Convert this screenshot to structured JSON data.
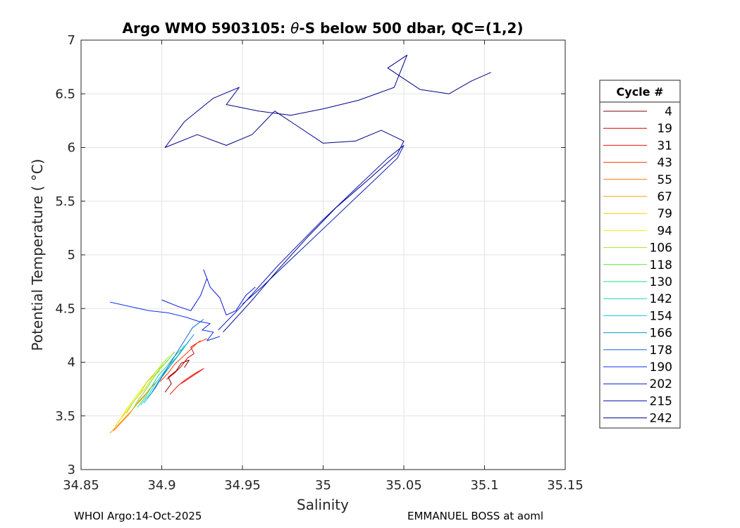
{
  "chart_data": {
    "type": "line",
    "title_prefix": "Argo WMO 5903105: ",
    "title_theta": "θ",
    "title_suffix": "-S below 500 dbar,  QC=(1,2)",
    "xlabel": "Salinity",
    "ylabel": "Potential Temperature ( °C)",
    "xlim": [
      34.85,
      35.15
    ],
    "ylim": [
      3,
      7
    ],
    "xticks": [
      34.85,
      34.9,
      34.95,
      35,
      35.05,
      35.1,
      35.15
    ],
    "xtick_labels": [
      "34.85",
      "34.9",
      "34.95",
      "35",
      "35.05",
      "35.1",
      "35.15"
    ],
    "yticks": [
      3,
      3.5,
      4,
      4.5,
      5,
      5.5,
      6,
      6.5,
      7
    ],
    "ytick_labels": [
      "3",
      "3.5",
      "4",
      "4.5",
      "5",
      "5.5",
      "6",
      "6.5",
      "7"
    ],
    "grid": true,
    "legend_position": "right-outside",
    "legend_title": "Cycle #",
    "series": [
      {
        "name": "4",
        "color": "#800000",
        "points": [
          [
            34.902,
            3.72
          ],
          [
            34.906,
            3.8
          ],
          [
            34.904,
            3.86
          ],
          [
            34.909,
            3.92
          ],
          [
            34.912,
            3.99
          ],
          [
            34.917,
            4.02
          ],
          [
            34.914,
            3.95
          ]
        ]
      },
      {
        "name": "19",
        "color": "#d40000",
        "points": [
          [
            34.903,
            3.84
          ],
          [
            34.908,
            3.9
          ],
          [
            34.912,
            3.96
          ],
          [
            34.916,
            4.04
          ],
          [
            34.92,
            4.08
          ],
          [
            34.918,
            4.14
          ],
          [
            34.924,
            4.2
          ]
        ]
      },
      {
        "name": "31",
        "color": "#f01010",
        "points": [
          [
            34.905,
            3.7
          ],
          [
            34.91,
            3.78
          ],
          [
            34.915,
            3.84
          ],
          [
            34.921,
            3.9
          ],
          [
            34.926,
            3.94
          ],
          [
            34.92,
            3.88
          ],
          [
            34.912,
            3.8
          ]
        ]
      },
      {
        "name": "43",
        "color": "#ff3800",
        "points": [
          [
            34.899,
            3.82
          ],
          [
            34.904,
            3.9
          ],
          [
            34.908,
            3.98
          ],
          [
            34.913,
            4.05
          ],
          [
            34.918,
            4.12
          ],
          [
            34.922,
            4.18
          ],
          [
            34.928,
            4.22
          ]
        ]
      },
      {
        "name": "55",
        "color": "#ff7400",
        "points": [
          [
            34.87,
            3.36
          ],
          [
            34.875,
            3.44
          ],
          [
            34.88,
            3.52
          ],
          [
            34.884,
            3.6
          ],
          [
            34.889,
            3.68
          ],
          [
            34.893,
            3.76
          ],
          [
            34.897,
            3.82
          ]
        ]
      },
      {
        "name": "67",
        "color": "#ff9e00",
        "points": [
          [
            34.868,
            3.34
          ],
          [
            34.872,
            3.4
          ],
          [
            34.877,
            3.48
          ],
          [
            34.882,
            3.56
          ],
          [
            34.886,
            3.64
          ],
          [
            34.891,
            3.72
          ],
          [
            34.895,
            3.8
          ]
        ]
      },
      {
        "name": "79",
        "color": "#ffc800",
        "points": [
          [
            34.871,
            3.4
          ],
          [
            34.876,
            3.5
          ],
          [
            34.88,
            3.58
          ],
          [
            34.885,
            3.68
          ],
          [
            34.89,
            3.76
          ],
          [
            34.894,
            3.86
          ],
          [
            34.899,
            3.92
          ]
        ]
      },
      {
        "name": "94",
        "color": "#f0f000",
        "points": [
          [
            34.874,
            3.46
          ],
          [
            34.878,
            3.56
          ],
          [
            34.883,
            3.66
          ],
          [
            34.887,
            3.74
          ],
          [
            34.892,
            3.84
          ],
          [
            34.897,
            3.92
          ],
          [
            34.901,
            3.98
          ]
        ]
      },
      {
        "name": "106",
        "color": "#a8e820",
        "points": [
          [
            34.878,
            3.52
          ],
          [
            34.882,
            3.62
          ],
          [
            34.887,
            3.72
          ],
          [
            34.891,
            3.82
          ],
          [
            34.896,
            3.9
          ],
          [
            34.9,
            3.98
          ],
          [
            34.905,
            4.06
          ]
        ]
      },
      {
        "name": "118",
        "color": "#5ee43c",
        "points": [
          [
            34.882,
            3.56
          ],
          [
            34.886,
            3.66
          ],
          [
            34.891,
            3.76
          ],
          [
            34.895,
            3.86
          ],
          [
            34.899,
            3.94
          ],
          [
            34.904,
            4.02
          ],
          [
            34.908,
            4.1
          ]
        ]
      },
      {
        "name": "130",
        "color": "#20dc7c",
        "points": [
          [
            34.885,
            3.58
          ],
          [
            34.89,
            3.68
          ],
          [
            34.894,
            3.78
          ],
          [
            34.898,
            3.88
          ],
          [
            34.903,
            3.96
          ],
          [
            34.907,
            4.04
          ],
          [
            34.912,
            4.12
          ]
        ]
      },
      {
        "name": "142",
        "color": "#10d8c0",
        "points": [
          [
            34.887,
            3.6
          ],
          [
            34.892,
            3.7
          ],
          [
            34.896,
            3.8
          ],
          [
            34.901,
            3.9
          ],
          [
            34.905,
            3.98
          ],
          [
            34.91,
            4.06
          ],
          [
            34.914,
            4.16
          ]
        ]
      },
      {
        "name": "154",
        "color": "#10c4e8",
        "points": [
          [
            34.889,
            3.62
          ],
          [
            34.894,
            3.72
          ],
          [
            34.898,
            3.82
          ],
          [
            34.903,
            3.92
          ],
          [
            34.907,
            4.0
          ],
          [
            34.912,
            4.1
          ],
          [
            34.917,
            4.2
          ]
        ]
      },
      {
        "name": "166",
        "color": "#0898c8",
        "points": [
          [
            34.891,
            3.66
          ],
          [
            34.896,
            3.76
          ],
          [
            34.9,
            3.86
          ],
          [
            34.905,
            3.96
          ],
          [
            34.91,
            4.06
          ],
          [
            34.915,
            4.16
          ],
          [
            34.92,
            4.26
          ]
        ]
      },
      {
        "name": "178",
        "color": "#1068d8",
        "points": [
          [
            34.894,
            3.72
          ],
          [
            34.899,
            3.84
          ],
          [
            34.904,
            3.96
          ],
          [
            34.909,
            4.08
          ],
          [
            34.914,
            4.2
          ],
          [
            34.919,
            4.32
          ],
          [
            34.926,
            4.4
          ]
        ]
      },
      {
        "name": "190",
        "color": "#1030f0",
        "points": [
          [
            34.868,
            4.56
          ],
          [
            34.88,
            4.52
          ],
          [
            34.892,
            4.48
          ],
          [
            34.904,
            4.46
          ],
          [
            34.915,
            4.42
          ],
          [
            34.923,
            4.38
          ],
          [
            34.93,
            4.36
          ],
          [
            34.925,
            4.3
          ],
          [
            34.932,
            4.28
          ],
          [
            34.928,
            4.2
          ],
          [
            34.936,
            4.24
          ]
        ]
      },
      {
        "name": "202",
        "color": "#0a16d8",
        "points": [
          [
            34.9,
            4.58
          ],
          [
            34.91,
            4.52
          ],
          [
            34.918,
            4.48
          ],
          [
            34.924,
            4.62
          ],
          [
            34.928,
            4.78
          ],
          [
            34.926,
            4.86
          ],
          [
            34.93,
            4.7
          ],
          [
            34.936,
            4.6
          ],
          [
            34.94,
            4.44
          ],
          [
            34.946,
            4.48
          ],
          [
            34.952,
            4.62
          ],
          [
            34.958,
            4.7
          ]
        ]
      },
      {
        "name": "215",
        "color": "#0010b0",
        "points": [
          [
            34.935,
            4.3
          ],
          [
            34.948,
            4.5
          ],
          [
            34.96,
            4.7
          ],
          [
            34.972,
            4.9
          ],
          [
            34.985,
            5.1
          ],
          [
            34.998,
            5.3
          ],
          [
            35.012,
            5.5
          ],
          [
            35.026,
            5.7
          ],
          [
            35.04,
            5.9
          ],
          [
            35.05,
            6.02
          ],
          [
            35.046,
            5.9
          ],
          [
            35.032,
            5.7
          ],
          [
            35.018,
            5.5
          ],
          [
            35.004,
            5.3
          ],
          [
            34.99,
            5.1
          ],
          [
            34.976,
            4.9
          ],
          [
            34.962,
            4.7
          ],
          [
            34.95,
            4.54
          ]
        ]
      },
      {
        "name": "242",
        "color": "#00008b",
        "points": [
          [
            34.938,
            4.28
          ],
          [
            34.955,
            4.56
          ],
          [
            34.972,
            4.86
          ],
          [
            34.99,
            5.16
          ],
          [
            35.008,
            5.44
          ],
          [
            35.028,
            5.7
          ],
          [
            35.046,
            5.94
          ],
          [
            35.05,
            6.06
          ],
          [
            35.036,
            6.16
          ],
          [
            35.02,
            6.06
          ],
          [
            35.0,
            6.04
          ],
          [
            34.984,
            6.2
          ],
          [
            34.97,
            6.34
          ],
          [
            34.956,
            6.12
          ],
          [
            34.94,
            6.02
          ],
          [
            34.922,
            6.12
          ],
          [
            34.902,
            6.0
          ],
          [
            34.914,
            6.24
          ],
          [
            34.932,
            6.46
          ],
          [
            34.948,
            6.56
          ],
          [
            34.94,
            6.4
          ],
          [
            34.96,
            6.34
          ],
          [
            34.98,
            6.3
          ],
          [
            35.0,
            6.36
          ],
          [
            35.022,
            6.44
          ],
          [
            35.044,
            6.56
          ],
          [
            35.052,
            6.86
          ],
          [
            35.04,
            6.74
          ],
          [
            35.06,
            6.54
          ],
          [
            35.078,
            6.5
          ],
          [
            35.092,
            6.62
          ],
          [
            35.104,
            6.7
          ]
        ]
      }
    ]
  },
  "footer": {
    "left": "WHOI Argo:14-Oct-2025",
    "right": "EMMANUEL BOSS at aoml"
  }
}
